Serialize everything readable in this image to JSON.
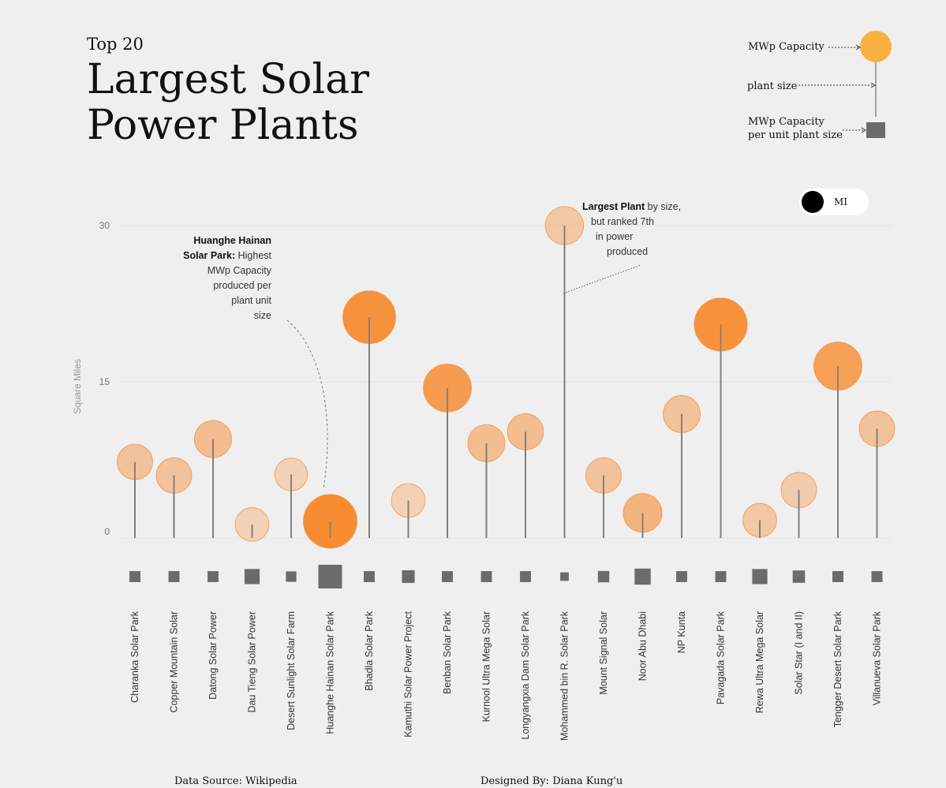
{
  "header": {
    "subtitle": "Top 20",
    "title": "Largest Solar Power Plants"
  },
  "legend": {
    "capacity_label": "MWp Capacity",
    "size_label": "plant size",
    "per_unit_label_1": "MWp Capacity",
    "per_unit_label_2": "per unit plant size",
    "circle_color": "#fbb040",
    "square_color": "#6b6b6b"
  },
  "toggle": {
    "label": "MI"
  },
  "annotations": {
    "huanghe_bold_1": "Huanghe Hainan",
    "huanghe_bold_2": "Solar Park:",
    "huanghe_text_1": "Highest",
    "huanghe_text_2": "MWp Capacity",
    "huanghe_text_3": "produced per",
    "huanghe_text_4": "plant unit",
    "huanghe_text_5": "size",
    "largest_bold": "Largest Plant",
    "largest_text_1": "by size,",
    "largest_text_2": "but ranked 7th",
    "largest_text_3": "in power",
    "largest_text_4": "produced"
  },
  "chart_data": {
    "type": "scatter",
    "ylabel": "Square Miles",
    "yticks": [
      0,
      15,
      30
    ],
    "ylim": [
      0,
      30
    ],
    "categories": [
      "Charanka Solar Park",
      "Copper Mountain Solar",
      "Datong Solar Power",
      "Dau Tieng Solar Power",
      "Desert Sunlight Solar Farm",
      "Huanghe Hainan Solar Park",
      "Bhadla Solar Park",
      "Kamuthi Solar Power Project",
      "Benban Solar Park",
      "Kurnool Ultra Mega Solar",
      "Longyangxia Dam Solar Park",
      "Mohammed bin R. Solar Park",
      "Mount Signal Solar",
      "Noor Abu Dhabi",
      "NP Kunta",
      "Pavagada Solar Park",
      "Rewa Ultra Mega Solar",
      "Solar Star (I and II)",
      "Tengger Desert Solar Park",
      "Villanueva Solar Park"
    ],
    "plant_size_sq_mi": [
      7.3,
      6.0,
      9.5,
      1.3,
      6.1,
      1.6,
      21.2,
      3.6,
      14.4,
      9.1,
      10.2,
      30.0,
      6.0,
      2.4,
      11.9,
      20.5,
      1.7,
      4.6,
      16.5,
      10.5
    ],
    "capacity_relative": [
      0.45,
      0.45,
      0.5,
      0.4,
      0.37,
      1.0,
      0.97,
      0.4,
      0.83,
      0.5,
      0.47,
      0.53,
      0.45,
      0.55,
      0.5,
      0.98,
      0.4,
      0.45,
      0.83,
      0.45
    ],
    "capacity_per_unit_relative": [
      0.33,
      0.33,
      0.33,
      0.55,
      0.3,
      1.0,
      0.33,
      0.42,
      0.33,
      0.33,
      0.33,
      0.2,
      0.35,
      0.6,
      0.33,
      0.33,
      0.55,
      0.4,
      0.33,
      0.33
    ],
    "circle_opacity": [
      0.45,
      0.45,
      0.5,
      0.3,
      0.3,
      1.0,
      0.95,
      0.3,
      0.85,
      0.5,
      0.5,
      0.4,
      0.45,
      0.6,
      0.45,
      0.95,
      0.4,
      0.35,
      0.8,
      0.45
    ]
  },
  "footer": {
    "source": "Data Source: Wikipedia",
    "designer": "Designed By: Diana Kung'u"
  }
}
